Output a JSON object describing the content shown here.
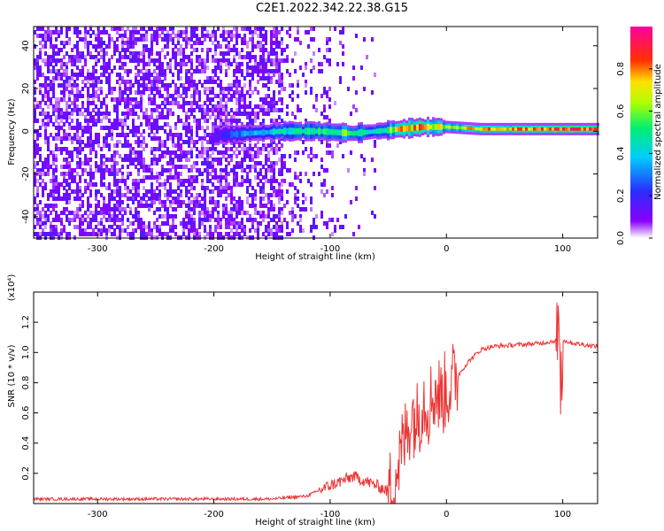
{
  "title": "C2E1.2022.342.22.38.G15",
  "colors": {
    "snr_line": "#ee3333",
    "spectrum_base": "#6a00f4",
    "axis": "#000000"
  },
  "colorbar": {
    "label": "Normalized spectral amplitude",
    "ticks": [
      "0.0",
      "0.2",
      "0.4",
      "0.6",
      "0.8"
    ],
    "tick_values": [
      0.0,
      0.2,
      0.4,
      0.6,
      0.8
    ],
    "range": [
      0,
      1
    ],
    "colormap": "rainbow (violet-blue-cyan-green-yellow-red-magenta)"
  },
  "chart_data": [
    {
      "type": "heatmap",
      "title": "C2E1.2022.342.22.38.G15",
      "xlabel": "Height of straight line (km)",
      "ylabel": "Frequency (Hz)",
      "xlim": [
        -355,
        130
      ],
      "ylim": [
        -50,
        49
      ],
      "x_ticks": [
        -300,
        -200,
        -100,
        0,
        100
      ],
      "x_tick_labels": [
        "-300",
        "-200",
        "-100",
        "0",
        "100"
      ],
      "y_ticks": [
        -40,
        -20,
        0,
        20,
        40
      ],
      "y_tick_labels": [
        "-40",
        "-20",
        "0",
        "20",
        "40"
      ],
      "ridge": {
        "description_values": "dominant spectral ridge near 0 Hz",
        "x": [
          -200,
          -170,
          -140,
          -110,
          -80,
          -60,
          -40,
          -20,
          0,
          30,
          60,
          90,
          110,
          130
        ],
        "freq": [
          -2,
          -1,
          0,
          0,
          -1,
          0,
          1,
          2,
          2,
          1,
          1,
          1,
          1,
          1
        ],
        "amplitude": [
          0.15,
          0.35,
          0.45,
          0.55,
          0.6,
          0.45,
          0.75,
          0.85,
          0.65,
          0.8,
          0.85,
          0.95,
          0.95,
          0.9
        ]
      },
      "grid": false
    },
    {
      "type": "line",
      "xlabel": "Height of straight line (km)",
      "ylabel": "SNR (10 * v/v)",
      "y_scale_label": "(x10⁴)",
      "xlim": [
        -355,
        130
      ],
      "ylim": [
        0,
        1.4
      ],
      "x_ticks": [
        -300,
        -200,
        -100,
        0,
        100
      ],
      "x_tick_labels": [
        "-300",
        "-200",
        "-100",
        "0",
        "100"
      ],
      "y_ticks": [
        0.2,
        0.4,
        0.6,
        0.8,
        1.0,
        1.2
      ],
      "y_tick_labels": [
        "0.2",
        "0.4",
        "0.6",
        "0.8",
        "1.0",
        "1.2"
      ],
      "series": [
        {
          "x": [
            -355,
            -300,
            -250,
            -200,
            -150,
            -120,
            -100,
            -90,
            -80,
            -70,
            -60,
            -50,
            -45,
            -40,
            -35,
            -30,
            -25,
            -20,
            -15,
            -10,
            -5,
            0,
            10,
            20,
            30,
            40,
            60,
            80,
            95,
            97,
            100,
            110,
            120,
            130
          ],
          "values": [
            0.03,
            0.03,
            0.03,
            0.03,
            0.03,
            0.05,
            0.12,
            0.15,
            0.18,
            0.15,
            0.12,
            0.08,
            0.15,
            0.3,
            0.45,
            0.6,
            0.55,
            0.7,
            0.65,
            0.75,
            0.7,
            0.75,
            0.85,
            0.95,
            1.02,
            1.04,
            1.05,
            1.06,
            1.08,
            0.75,
            1.08,
            1.06,
            1.05,
            1.04
          ]
        }
      ],
      "grid": false
    }
  ]
}
